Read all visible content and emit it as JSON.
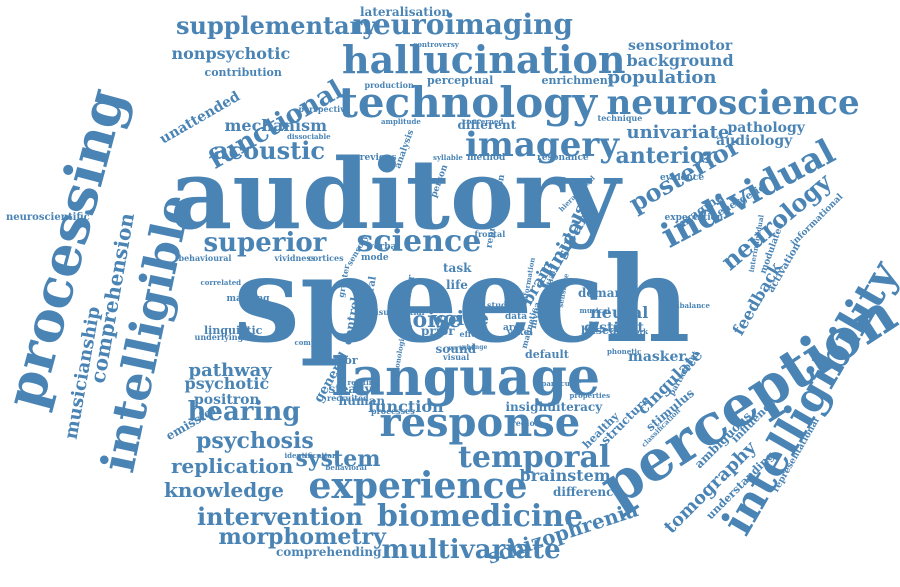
{
  "color": "#4a84b5",
  "words": [
    {
      "text": "speech",
      "size": 118,
      "rot": 0
    },
    {
      "text": "auditory",
      "size": 96,
      "rot": 0
    },
    {
      "text": "language",
      "size": 52,
      "rot": 0
    },
    {
      "text": "perception",
      "size": 56,
      "rot": -33
    },
    {
      "text": "processing",
      "size": 54,
      "rot": -75
    },
    {
      "text": "intelligible",
      "size": 46,
      "rot": -78
    },
    {
      "text": "intelligibility",
      "size": 42,
      "rot": -60
    },
    {
      "text": "technology",
      "size": 42,
      "rot": 0
    },
    {
      "text": "response",
      "size": 40,
      "rot": 0
    },
    {
      "text": "experience",
      "size": 36,
      "rot": 0
    },
    {
      "text": "hallucination",
      "size": 38,
      "rot": 0
    },
    {
      "text": "neuroscience",
      "size": 34,
      "rot": 0
    },
    {
      "text": "imagery",
      "size": 34,
      "rot": 0
    },
    {
      "text": "individual",
      "size": 34,
      "rot": -28
    },
    {
      "text": "science",
      "size": 30,
      "rot": 0
    },
    {
      "text": "temporal",
      "size": 30,
      "rot": 0
    },
    {
      "text": "biomedicine",
      "size": 30,
      "rot": 0
    },
    {
      "text": "neuroimaging",
      "size": 28,
      "rot": 0
    },
    {
      "text": "multivariate",
      "size": 26,
      "rot": 0
    },
    {
      "text": "hearing",
      "size": 26,
      "rot": 0
    },
    {
      "text": "superior",
      "size": 26,
      "rot": 0
    },
    {
      "text": "supplementary",
      "size": 24,
      "rot": 0
    },
    {
      "text": "functional",
      "size": 26,
      "rot": -30
    },
    {
      "text": "intervention",
      "size": 24,
      "rot": 0
    },
    {
      "text": "neurology",
      "size": 24,
      "rot": -40
    },
    {
      "text": "posterior",
      "size": 24,
      "rot": -30
    },
    {
      "text": "acoustic",
      "size": 24,
      "rot": 0
    },
    {
      "text": "anterior",
      "size": 22,
      "rot": 0
    },
    {
      "text": "morphometry",
      "size": 22,
      "rot": 0
    },
    {
      "text": "psychosis",
      "size": 22,
      "rot": 0
    },
    {
      "text": "replication",
      "size": 20,
      "rot": 0
    },
    {
      "text": "system",
      "size": 22,
      "rot": 0
    },
    {
      "text": "knowledge",
      "size": 20,
      "rot": 0
    },
    {
      "text": "schizophrenia",
      "size": 20,
      "rot": -18
    },
    {
      "text": "comprehension",
      "size": 20,
      "rot": -80
    },
    {
      "text": "musicianship",
      "size": 18,
      "rot": -80
    },
    {
      "text": "noise",
      "size": 22,
      "rot": 0
    },
    {
      "text": "voice",
      "size": 20,
      "rot": 0
    },
    {
      "text": "clinical",
      "size": 20,
      "rot": -60
    },
    {
      "text": "tomography",
      "size": 18,
      "rot": -45
    },
    {
      "text": "univariate",
      "size": 18,
      "rot": 0
    },
    {
      "text": "population",
      "size": 18,
      "rot": 0
    },
    {
      "text": "brainstem",
      "size": 16,
      "rot": 0
    },
    {
      "text": "pathway",
      "size": 18,
      "rot": 0
    },
    {
      "text": "psychotic",
      "size": 16,
      "rot": 0
    },
    {
      "text": "mechanism",
      "size": 16,
      "rot": 0
    },
    {
      "text": "nonpsychotic",
      "size": 16,
      "rot": 0
    },
    {
      "text": "background",
      "size": 16,
      "rot": 0
    },
    {
      "text": "sensorimotor",
      "size": 14,
      "rot": 0
    },
    {
      "text": "unattended",
      "size": 14,
      "rot": -30
    },
    {
      "text": "pathology",
      "size": 14,
      "rot": 0
    },
    {
      "text": "audiology",
      "size": 14,
      "rot": 0
    },
    {
      "text": "neural",
      "size": 16,
      "rot": 0
    },
    {
      "text": "distinct",
      "size": 14,
      "rot": 0
    },
    {
      "text": "function",
      "size": 16,
      "rot": 0
    },
    {
      "text": "positron",
      "size": 14,
      "rot": 0
    },
    {
      "text": "emission",
      "size": 12,
      "rot": -30
    },
    {
      "text": "feedback",
      "size": 16,
      "rot": -60
    },
    {
      "text": "cingulate",
      "size": 16,
      "rot": -45
    },
    {
      "text": "masker",
      "size": 14,
      "rot": 0
    },
    {
      "text": "difference",
      "size": 12,
      "rot": 0
    },
    {
      "text": "comprehending",
      "size": 12,
      "rot": 0
    },
    {
      "text": "sulcus",
      "size": 16,
      "rot": -70
    },
    {
      "text": "brain",
      "size": 16,
      "rot": -60
    },
    {
      "text": "lateralisation",
      "size": 12,
      "rot": 0
    },
    {
      "text": "contribution",
      "size": 11,
      "rot": 0
    },
    {
      "text": "perceptual",
      "size": 11,
      "rot": 0
    },
    {
      "text": "enrichment",
      "size": 11,
      "rot": 0
    },
    {
      "text": "different",
      "size": 12,
      "rot": 0
    },
    {
      "text": "neuroscientific",
      "size": 10,
      "rot": 0
    },
    {
      "text": "general",
      "size": 13,
      "rot": -60
    },
    {
      "text": "insight",
      "size": 12,
      "rot": 0
    },
    {
      "text": "literacy",
      "size": 12,
      "rot": 0
    },
    {
      "text": "structure",
      "size": 12,
      "rot": -45
    },
    {
      "text": "healthy",
      "size": 11,
      "rot": -45
    },
    {
      "text": "stimulus",
      "size": 12,
      "rot": -40
    },
    {
      "text": "ambiguous",
      "size": 12,
      "rot": -45
    },
    {
      "text": "influence",
      "size": 11,
      "rot": -45
    },
    {
      "text": "understanding",
      "size": 11,
      "rot": -45
    },
    {
      "text": "imaging",
      "size": 12,
      "rot": -35
    },
    {
      "text": "energetic",
      "size": 10,
      "rot": -30
    },
    {
      "text": "demand",
      "size": 12,
      "rot": 0
    },
    {
      "text": "linguistic",
      "size": 11,
      "rot": 0
    },
    {
      "text": "steady",
      "size": 12,
      "rot": 0
    },
    {
      "text": "human",
      "size": 12,
      "rot": 0
    },
    {
      "text": "control",
      "size": 12,
      "rot": -80
    },
    {
      "text": "motor",
      "size": 11,
      "rot": 0
    },
    {
      "text": "sound",
      "size": 12,
      "rot": 0
    },
    {
      "text": "default",
      "size": 11,
      "rot": 0
    },
    {
      "text": "based",
      "size": 11,
      "rot": 0
    },
    {
      "text": "prior",
      "size": 12,
      "rot": 0
    },
    {
      "text": "task",
      "size": 12,
      "rot": 0
    },
    {
      "text": "life",
      "size": 12,
      "rot": 0
    },
    {
      "text": "activation",
      "size": 10,
      "rot": -60
    },
    {
      "text": "modulated",
      "size": 9,
      "rot": -70
    },
    {
      "text": "informational",
      "size": 9,
      "rot": -45
    },
    {
      "text": "representational",
      "size": 9,
      "rot": -60
    },
    {
      "text": "expectation",
      "size": 9,
      "rot": 0
    },
    {
      "text": "evidence",
      "size": 9,
      "rot": 0
    },
    {
      "text": "technique",
      "size": 8,
      "rot": 0
    },
    {
      "text": "previous",
      "size": 9,
      "rot": 0
    },
    {
      "text": "method",
      "size": 9,
      "rot": 0
    },
    {
      "text": "resonance",
      "size": 9,
      "rot": 0
    },
    {
      "text": "analysis",
      "size": 9,
      "rot": -70
    },
    {
      "text": "person",
      "size": 9,
      "rot": -70
    },
    {
      "text": "representation",
      "size": 9,
      "rot": -80
    },
    {
      "text": "verbal",
      "size": 9,
      "rot": 0
    },
    {
      "text": "vividness",
      "size": 8,
      "rot": 0
    },
    {
      "text": "cortices",
      "size": 8,
      "rot": 0
    },
    {
      "text": "mode",
      "size": 9,
      "rot": 0
    },
    {
      "text": "behavioural",
      "size": 8,
      "rot": 0
    },
    {
      "text": "correlated",
      "size": 7,
      "rot": 0
    },
    {
      "text": "masking",
      "size": 9,
      "rot": 0
    },
    {
      "text": "underlying",
      "size": 8,
      "rot": 0
    },
    {
      "text": "enhance",
      "size": 8,
      "rot": 0
    },
    {
      "text": "relating",
      "size": 7,
      "rot": 0
    },
    {
      "text": "recruited",
      "size": 8,
      "rot": 0
    },
    {
      "text": "processes",
      "size": 8,
      "rot": 0
    },
    {
      "text": "identification",
      "size": 7,
      "rot": 0
    },
    {
      "text": "behavioral",
      "size": 7,
      "rot": 0
    },
    {
      "text": "region",
      "size": 8,
      "rot": 0
    },
    {
      "text": "particular",
      "size": 7,
      "rot": 0
    },
    {
      "text": "properties",
      "size": 7,
      "rot": 0
    },
    {
      "text": "participant",
      "size": 8,
      "rot": -60
    },
    {
      "text": "classification",
      "size": 7,
      "rot": -45
    },
    {
      "text": "network",
      "size": 7,
      "rot": 0
    },
    {
      "text": "musical",
      "size": 7,
      "rot": 0
    },
    {
      "text": "visual",
      "size": 8,
      "rot": 0
    },
    {
      "text": "voxel",
      "size": 9,
      "rot": 0
    },
    {
      "text": "mvpa",
      "size": 9,
      "rot": -80
    },
    {
      "text": "area",
      "size": 9,
      "rot": 0
    },
    {
      "text": "data",
      "size": 9,
      "rot": 0
    },
    {
      "text": "study",
      "size": 8,
      "rot": 0
    },
    {
      "text": "inner",
      "size": 10,
      "rot": -80
    },
    {
      "text": "bilateral",
      "size": 10,
      "rot": -80
    },
    {
      "text": "greater",
      "size": 8,
      "rot": -80
    },
    {
      "text": "sensory",
      "size": 8,
      "rot": -60
    },
    {
      "text": "effect",
      "size": 8,
      "rot": 0
    },
    {
      "text": "frontal",
      "size": 8,
      "rot": 0
    },
    {
      "text": "magnetic",
      "size": 8,
      "rot": -75
    },
    {
      "text": "potential",
      "size": 8,
      "rot": -75
    },
    {
      "text": "sensitive",
      "size": 7,
      "rot": -80
    },
    {
      "text": "information",
      "size": 7,
      "rot": -80
    },
    {
      "text": "visuospatial",
      "size": 8,
      "rot": 0
    },
    {
      "text": "controversy",
      "size": 7,
      "rot": 0
    },
    {
      "text": "production",
      "size": 8,
      "rot": 0
    },
    {
      "text": "perspective",
      "size": 8,
      "rot": 0
    },
    {
      "text": "dissociable",
      "size": 7,
      "rot": 0
    },
    {
      "text": "amplitude",
      "size": 7,
      "rot": 0
    },
    {
      "text": "concerned",
      "size": 7,
      "rot": 0
    },
    {
      "text": "syllable",
      "size": 7,
      "rot": 0
    },
    {
      "text": "hierarchical",
      "size": 7,
      "rot": -45
    },
    {
      "text": "interindividual",
      "size": 7,
      "rot": -80
    },
    {
      "text": "imbalance",
      "size": 7,
      "rot": 0
    },
    {
      "text": "phonetic",
      "size": 7,
      "rot": 0
    },
    {
      "text": "phonological",
      "size": 7,
      "rot": -80
    },
    {
      "text": "complex",
      "size": 7,
      "rot": 0
    },
    {
      "text": "change",
      "size": 6,
      "rot": 0
    },
    {
      "text": "vertical",
      "size": 6,
      "rot": 0
    },
    {
      "text": "whereas",
      "size": 7,
      "rot": 0
    }
  ]
}
